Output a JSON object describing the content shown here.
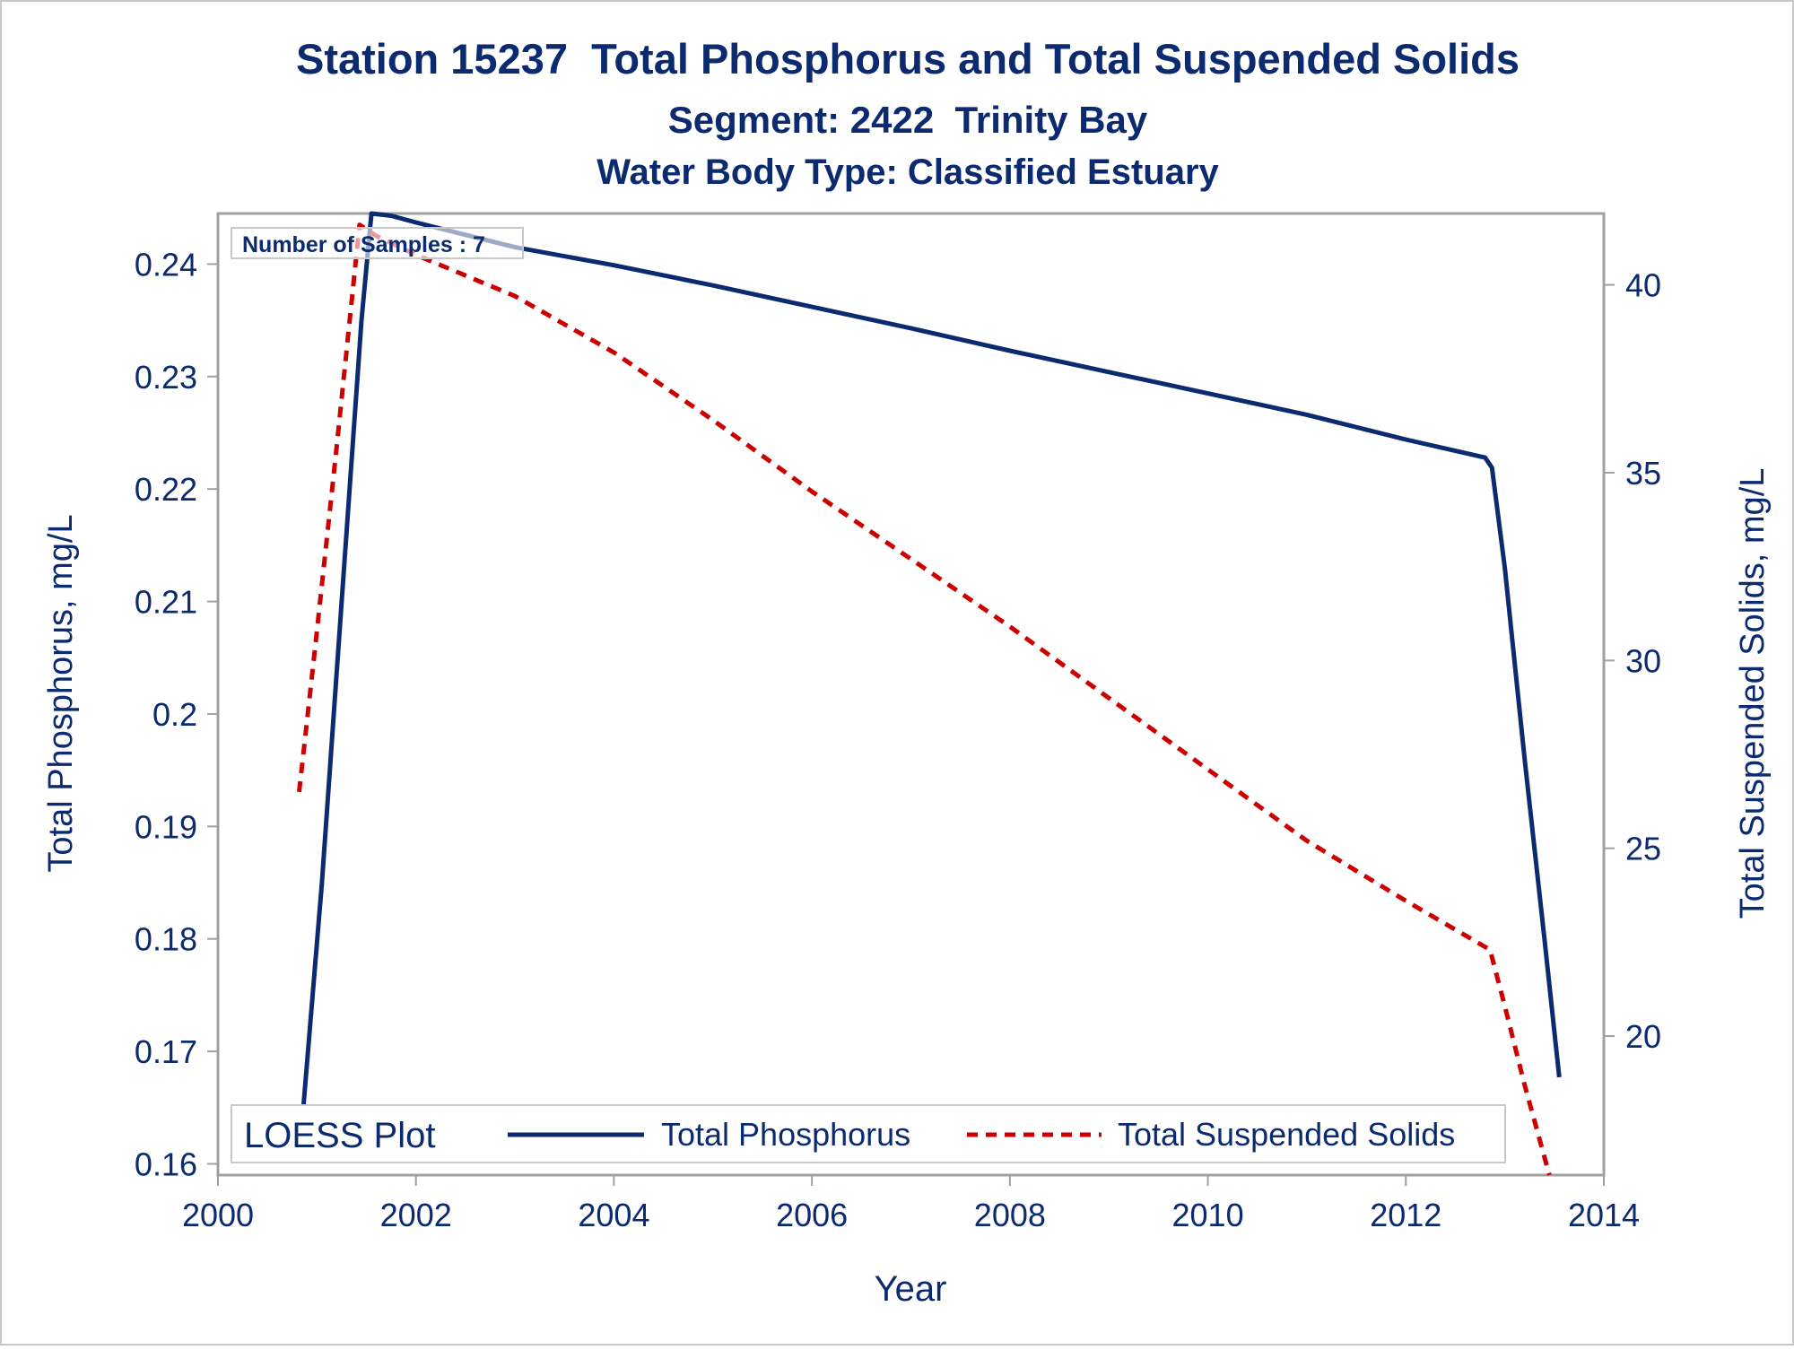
{
  "colors": {
    "text": "#0b2a6f",
    "phosphorus": "#0b2a6f",
    "solids": "#cc0000",
    "frame": "#a0a0a0",
    "background": "#ffffff"
  },
  "chart_data": {
    "type": "line",
    "title": "Station 15237  Total Phosphorus and Total Suspended Solids",
    "subtitle": "Segment: 2422  Trinity Bay",
    "subtitle2": "Water Body Type: Classified Estuary",
    "xlabel": "Year",
    "ylabel_left": "Total Phosphorus, mg/L",
    "ylabel_right": "Total Suspended Solids, mg/L",
    "xlim": [
      2000,
      2014
    ],
    "ylim_left": [
      0.159,
      0.2445
    ],
    "ylim_right": [
      16.3,
      41.9
    ],
    "x_ticks": [
      2000,
      2002,
      2004,
      2006,
      2008,
      2010,
      2012,
      2014
    ],
    "y_ticks_left": [
      {
        "value": 0.16,
        "label": "0.16"
      },
      {
        "value": 0.17,
        "label": "0.17"
      },
      {
        "value": 0.18,
        "label": "0.18"
      },
      {
        "value": 0.19,
        "label": "0.19"
      },
      {
        "value": 0.2,
        "label": "0.2"
      },
      {
        "value": 0.21,
        "label": "0.21"
      },
      {
        "value": 0.22,
        "label": "0.22"
      },
      {
        "value": 0.23,
        "label": "0.23"
      },
      {
        "value": 0.24,
        "label": "0.24"
      }
    ],
    "y_ticks_right": [
      {
        "value": 20,
        "label": "20"
      },
      {
        "value": 25,
        "label": "25"
      },
      {
        "value": 30,
        "label": "30"
      },
      {
        "value": 35,
        "label": "35"
      },
      {
        "value": 40,
        "label": "40"
      }
    ],
    "inset_label": "Number of Samples : 7",
    "legend": {
      "title": "LOESS Plot",
      "position": "bottom-inside",
      "entries": [
        "Total Phosphorus",
        "Total Suspended Solids"
      ]
    },
    "series": [
      {
        "name": "Total Phosphorus",
        "axis": "left",
        "style": "solid",
        "points": [
          [
            2000.82,
            0.1605
          ],
          [
            2001.05,
            0.185
          ],
          [
            2001.25,
            0.21
          ],
          [
            2001.45,
            0.235
          ],
          [
            2001.55,
            0.2445
          ],
          [
            2001.75,
            0.2443
          ],
          [
            2002.0,
            0.2437
          ],
          [
            2003.0,
            0.2415
          ],
          [
            2004.0,
            0.2399
          ],
          [
            2005.0,
            0.2381
          ],
          [
            2006.0,
            0.2362
          ],
          [
            2007.0,
            0.2343
          ],
          [
            2008.0,
            0.2323
          ],
          [
            2009.0,
            0.2304
          ],
          [
            2010.0,
            0.2285
          ],
          [
            2011.0,
            0.2266
          ],
          [
            2012.0,
            0.2244
          ],
          [
            2012.55,
            0.2233
          ],
          [
            2012.8,
            0.2228
          ],
          [
            2012.87,
            0.2219
          ],
          [
            2013.0,
            0.213
          ],
          [
            2013.2,
            0.196
          ],
          [
            2013.4,
            0.18
          ],
          [
            2013.55,
            0.1677
          ]
        ]
      },
      {
        "name": "Total Suspended Solids",
        "axis": "right",
        "style": "dashed",
        "points": [
          [
            2000.82,
            26.5
          ],
          [
            2001.0,
            30.8
          ],
          [
            2001.2,
            35.7
          ],
          [
            2001.43,
            41.6
          ],
          [
            2001.6,
            41.3
          ],
          [
            2002.0,
            40.8
          ],
          [
            2003.0,
            39.7
          ],
          [
            2004.0,
            38.2
          ],
          [
            2005.0,
            36.4
          ],
          [
            2006.0,
            34.5
          ],
          [
            2007.0,
            32.7
          ],
          [
            2008.0,
            30.9
          ],
          [
            2009.0,
            29.0
          ],
          [
            2010.0,
            27.1
          ],
          [
            2011.0,
            25.2
          ],
          [
            2012.0,
            23.6
          ],
          [
            2012.85,
            22.3
          ],
          [
            2013.0,
            20.8
          ],
          [
            2013.2,
            18.7
          ],
          [
            2013.45,
            16.3
          ]
        ]
      }
    ]
  }
}
